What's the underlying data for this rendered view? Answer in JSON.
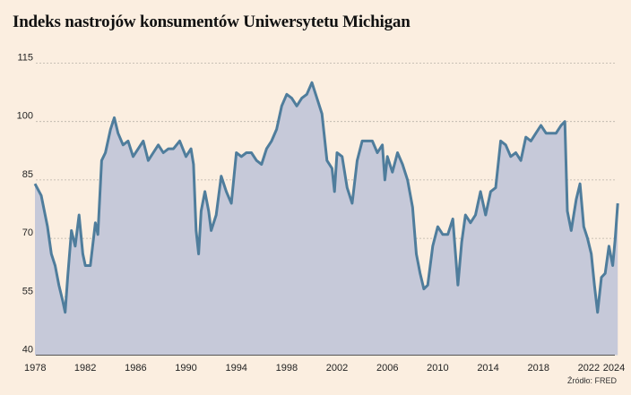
{
  "title": "Indeks nastrojów konsumentów Uniwersytetu Michigan",
  "source": "Źródło: FRED",
  "colors": {
    "background": "#fbeee0",
    "line": "#4f7d9c",
    "fill": "#c6c9d9",
    "grid": "#b9b2a8"
  },
  "chart_data": {
    "type": "area",
    "title": "Indeks nastrojów konsumentów Uniwersytetu Michigan",
    "xlabel": "",
    "ylabel": "",
    "xlim": [
      1978,
      2024.3
    ],
    "ylim": [
      40,
      117
    ],
    "grid": true,
    "y_ticks": [
      40,
      55,
      70,
      85,
      100,
      115
    ],
    "x_ticks": [
      1978,
      1982,
      1986,
      1990,
      1994,
      1998,
      2002,
      2006,
      2010,
      2014,
      2018,
      2022,
      2024
    ],
    "series": [
      {
        "x": [
          1978,
          1978.5,
          1979,
          1979.3,
          1979.6,
          1979.9,
          1980.2,
          1980.4,
          1980.6,
          1980.9,
          1981.2,
          1981.5,
          1981.8,
          1982.0,
          1982.4,
          1982.8,
          1983.0,
          1983.3,
          1983.6,
          1984.0,
          1984.3,
          1984.6,
          1985.0,
          1985.4,
          1985.8,
          1986.2,
          1986.6,
          1987.0,
          1987.4,
          1987.8,
          1988.2,
          1988.6,
          1989.0,
          1989.5,
          1990.0,
          1990.4,
          1990.6,
          1990.8,
          1991.0,
          1991.2,
          1991.5,
          1991.8,
          1992.0,
          1992.4,
          1992.8,
          1993.2,
          1993.6,
          1994.0,
          1994.4,
          1994.8,
          1995.2,
          1995.6,
          1996.0,
          1996.4,
          1996.8,
          1997.2,
          1997.6,
          1998.0,
          1998.4,
          1998.8,
          1999.2,
          1999.6,
          2000.0,
          2000.4,
          2000.8,
          2001.2,
          2001.6,
          2001.8,
          2002.0,
          2002.4,
          2002.8,
          2003.2,
          2003.6,
          2004.0,
          2004.4,
          2004.8,
          2005.2,
          2005.6,
          2005.8,
          2006.0,
          2006.4,
          2006.8,
          2007.2,
          2007.6,
          2008.0,
          2008.3,
          2008.6,
          2008.9,
          2009.2,
          2009.6,
          2010.0,
          2010.4,
          2010.8,
          2011.2,
          2011.6,
          2011.9,
          2012.2,
          2012.6,
          2013.0,
          2013.4,
          2013.8,
          2014.2,
          2014.6,
          2015.0,
          2015.4,
          2015.8,
          2016.2,
          2016.6,
          2017.0,
          2017.4,
          2017.8,
          2018.2,
          2018.6,
          2019.0,
          2019.4,
          2019.8,
          2020.1,
          2020.3,
          2020.6,
          2021.0,
          2021.3,
          2021.6,
          2021.9,
          2022.2,
          2022.45,
          2022.7,
          2023.0,
          2023.3,
          2023.6,
          2023.9,
          2024.1,
          2024.3
        ],
        "values": [
          84,
          81,
          73,
          66,
          63,
          58,
          54,
          51,
          60,
          72,
          68,
          76,
          66,
          63,
          63,
          74,
          71,
          90,
          92,
          98,
          101,
          97,
          94,
          95,
          91,
          93,
          95,
          90,
          92,
          94,
          92,
          93,
          93,
          95,
          91,
          93,
          89,
          72,
          66,
          77,
          82,
          77,
          72,
          76,
          86,
          82,
          79,
          92,
          91,
          92,
          92,
          90,
          89,
          93,
          95,
          98,
          104,
          107,
          106,
          104,
          106,
          107,
          110,
          106,
          102,
          90,
          88,
          82,
          92,
          91,
          83,
          79,
          90,
          95,
          95,
          95,
          92,
          94,
          85,
          91,
          87,
          92,
          89,
          85,
          78,
          66,
          61,
          57,
          58,
          68,
          73,
          71,
          71,
          75,
          58,
          69,
          76,
          74,
          76,
          82,
          76,
          82,
          83,
          95,
          94,
          91,
          92,
          90,
          96,
          95,
          97,
          99,
          97,
          97,
          97,
          99,
          100,
          77,
          72,
          80,
          84,
          73,
          70,
          66,
          58,
          51,
          60,
          61,
          68,
          63,
          70,
          79
        ]
      }
    ]
  }
}
